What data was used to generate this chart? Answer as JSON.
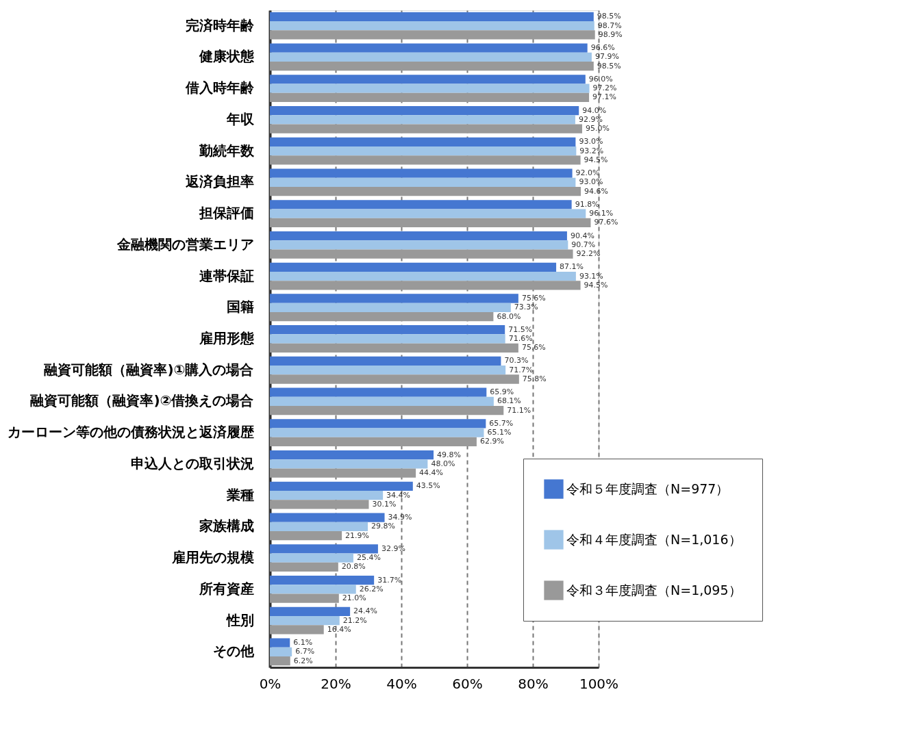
{
  "chart_data": {
    "type": "bar",
    "orientation": "horizontal",
    "categories": [
      "完済時年齢",
      "健康状態",
      "借入時年齢",
      "年収",
      "勤続年数",
      "返済負担率",
      "担保評価",
      "金融機関の営業エリア",
      "連帯保証",
      "国籍",
      "雇用形態",
      "融資可能額（融資率)①購入の場合",
      "融資可能額（融資率)②借換えの場合",
      "カーローン等の他の債務状況と返済履歴",
      "申込人との取引状況",
      "業種",
      "家族構成",
      "雇用先の規模",
      "所有資産",
      "性別",
      "その他"
    ],
    "series": [
      {
        "name": "令和５年度調査（N=977）",
        "color": "#4577d1",
        "values": [
          98.5,
          96.6,
          96.0,
          94.0,
          93.0,
          92.0,
          91.8,
          90.4,
          87.1,
          75.6,
          71.5,
          70.3,
          65.9,
          65.7,
          49.8,
          43.5,
          34.9,
          32.9,
          31.7,
          24.4,
          6.1
        ],
        "value_labels": [
          "98.5%",
          "96.6%",
          "96.0%",
          "94.0%",
          "93.0%",
          "92.0%",
          "91.8%",
          "90.4%",
          "87.1%",
          "75.6%",
          "71.5%",
          "70.3%",
          "65.9%",
          "65.7%",
          "49.8%",
          "43.5%",
          "34.9%",
          "32.9%",
          "31.7%",
          "24.4%",
          "6.1%"
        ]
      },
      {
        "name": "令和４年度調査（N=1,016）",
        "color": "#9fc5e8",
        "values": [
          98.7,
          97.9,
          97.2,
          92.9,
          93.2,
          93.0,
          96.1,
          90.7,
          93.1,
          73.3,
          71.6,
          71.7,
          68.1,
          65.1,
          48.0,
          34.4,
          29.8,
          25.4,
          26.2,
          21.2,
          6.7
        ],
        "value_labels": [
          "98.7%",
          "97.9%",
          "97.2%",
          "92.9%",
          "93.2%",
          "93.0%",
          "96.1%",
          "90.7%",
          "93.1%",
          "73.3%",
          "71.6%",
          "71.7%",
          "68.1%",
          "65.1%",
          "48.0%",
          "34.4%",
          "29.8%",
          "25.4%",
          "26.2%",
          "21.2%",
          "6.7%"
        ]
      },
      {
        "name": "令和３年度調査（N=1,095）",
        "color": "#999999",
        "values": [
          98.9,
          98.5,
          97.1,
          95.0,
          94.5,
          94.6,
          97.6,
          92.2,
          94.5,
          68.0,
          75.6,
          75.8,
          71.1,
          62.9,
          44.4,
          30.1,
          21.9,
          20.8,
          21.0,
          16.4,
          6.2
        ],
        "value_labels": [
          "98.9%",
          "98.5%",
          "97.1%",
          "95.0%",
          "94.5%",
          "94.6%",
          "97.6%",
          "92.2%",
          "94.5%",
          "68.0%",
          "75.6%",
          "75.8%",
          "71.1%",
          "62.9%",
          "44.4%",
          "30.1%",
          "21.9%",
          "20.8%",
          "21.0%",
          "16.4%",
          "6.2%"
        ]
      }
    ],
    "xlim": [
      0,
      100
    ],
    "xticks": [
      {
        "value": 0,
        "label": "0%"
      },
      {
        "value": 20,
        "label": "20%"
      },
      {
        "value": 40,
        "label": "40%"
      },
      {
        "value": 60,
        "label": "60%"
      },
      {
        "value": 80,
        "label": "80%"
      },
      {
        "value": 100,
        "label": "100%"
      }
    ],
    "grid": "x",
    "legend": "bottom right"
  }
}
